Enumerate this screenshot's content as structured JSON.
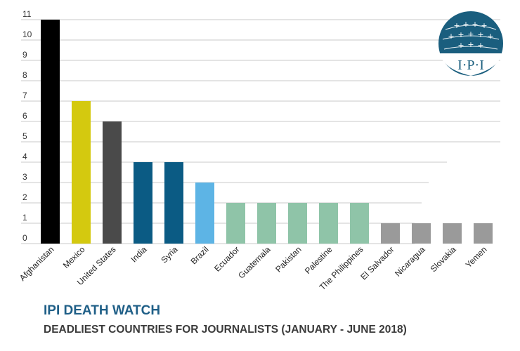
{
  "chart_data": {
    "type": "bar",
    "title": "IPI DEATH WATCH",
    "subtitle": "DEADLIEST COUNTRIES FOR JOURNALISTS (JANUARY - JUNE 2018)",
    "xlabel": "",
    "ylabel": "",
    "ylim": [
      0,
      11
    ],
    "yticks": [
      "0",
      "1",
      "2",
      "3",
      "4",
      "5",
      "6",
      "7",
      "8",
      "9",
      "10",
      "11"
    ],
    "grid": true,
    "legend": "none",
    "categories": [
      "Afghanistan",
      "Mexico",
      "United States",
      "India",
      "Syria",
      "Brazil",
      "Ecuador",
      "Guatemala",
      "Pakistan",
      "Palestine",
      "The Philippines",
      "El Salvador",
      "Nicaragua",
      "Slovakia",
      "Yemen"
    ],
    "values": [
      11,
      7,
      6,
      4,
      4,
      3,
      2,
      2,
      2,
      2,
      2,
      1,
      1,
      1,
      1
    ],
    "bar_colors": [
      "#000000",
      "#d4c90f",
      "#4a4a4a",
      "#0b5b84",
      "#0b5b84",
      "#5db4e5",
      "#8fc4a8",
      "#8fc4a8",
      "#8fc4a8",
      "#8fc4a8",
      "#8fc4a8",
      "#9a9a9a",
      "#9a9a9a",
      "#9a9a9a",
      "#9a9a9a"
    ]
  },
  "logo": {
    "text": "I·P·I",
    "color": "#1a5e7e"
  }
}
